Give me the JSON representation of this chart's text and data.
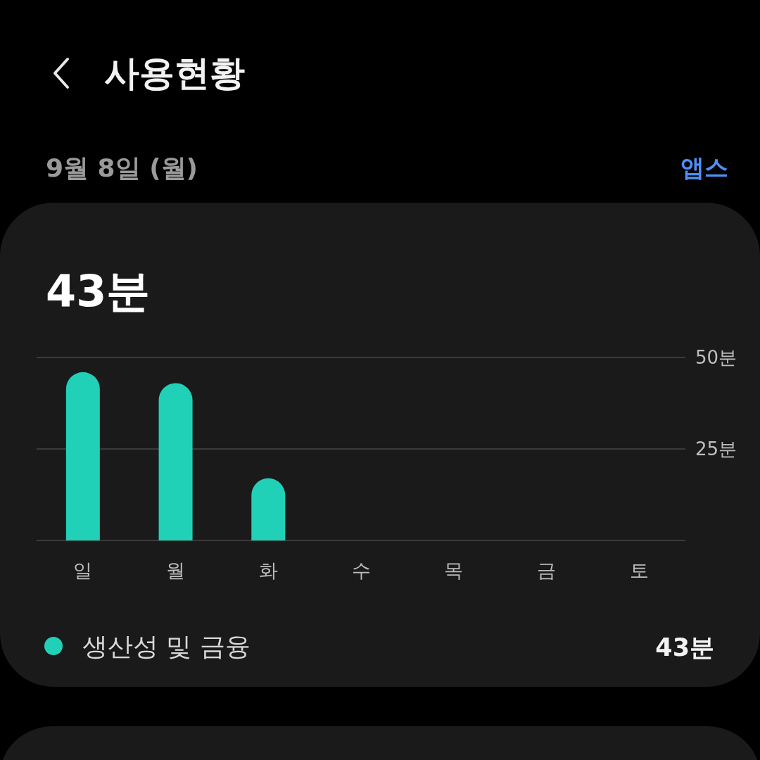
{
  "chart_data": {
    "type": "bar",
    "title": "사용현황",
    "subtitle": "9월 8일 (월)",
    "annotations": [
      "앱스",
      "43분",
      "43분"
    ],
    "categories": [
      "일",
      "월",
      "화",
      "수",
      "목",
      "금",
      "토"
    ],
    "series": [
      {
        "name": "생산성 및 금융",
        "color": "#21d1b7",
        "values": [
          46,
          43,
          17,
          null,
          null,
          null,
          null
        ]
      }
    ],
    "ylim": [
      0,
      50
    ],
    "yticks": [
      {
        "value": 0,
        "label": null
      },
      {
        "value": 25,
        "label": "25분"
      },
      {
        "value": 50,
        "label": "50분"
      }
    ],
    "grid": "y",
    "legend": "bottom"
  }
}
